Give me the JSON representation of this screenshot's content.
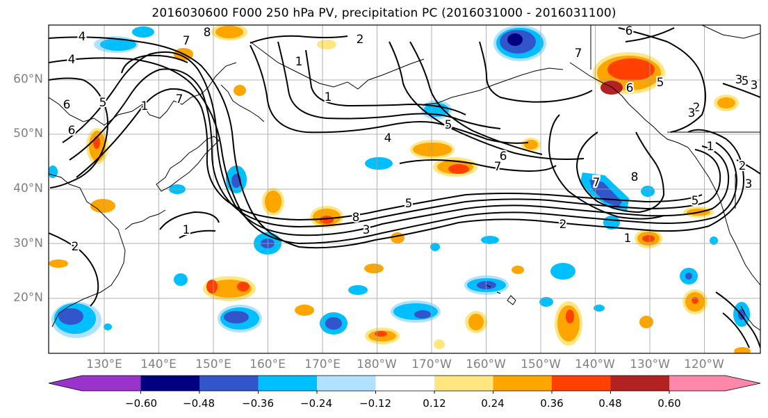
{
  "title": "2016030600 F000 250 hPa PV, precipitation PC (2016031000 - 2016031100)",
  "map": {
    "lat_labels": [
      "60°N",
      "50°N",
      "40°N",
      "30°N",
      "20°N"
    ],
    "lon_labels": [
      "130°E",
      "140°E",
      "150°E",
      "160°E",
      "170°E",
      "180°W",
      "170°W",
      "160°W",
      "150°W",
      "140°W",
      "130°W",
      "120°W"
    ],
    "contour_labels": [
      "4",
      "4",
      "6",
      "5",
      "6",
      "7",
      "7",
      "8",
      "2",
      "1",
      "7",
      "5",
      "4",
      "5",
      "6",
      "7",
      "1",
      "2",
      "6",
      "7",
      "8",
      "6",
      "5",
      "1",
      "3",
      "8",
      "7",
      "5",
      "1",
      "2",
      "3",
      "3",
      "5",
      "2",
      "1",
      "1",
      "2",
      "3",
      "3"
    ],
    "colors": {
      "land_outline": "#000000",
      "grid": "#a0a0a0",
      "contour": "#000000"
    }
  },
  "colorbar": {
    "ticks": [
      "−0.60",
      "−0.48",
      "−0.36",
      "−0.24",
      "−0.12",
      "0.12",
      "0.24",
      "0.36",
      "0.48",
      "0.60"
    ],
    "colors": [
      "#9933cc",
      "#000080",
      "#3355cc",
      "#00bfff",
      "#b0e2ff",
      "#ffffff",
      "#ffe680",
      "#ffa500",
      "#ff4000",
      "#b22222",
      "#ff88aa"
    ]
  }
}
